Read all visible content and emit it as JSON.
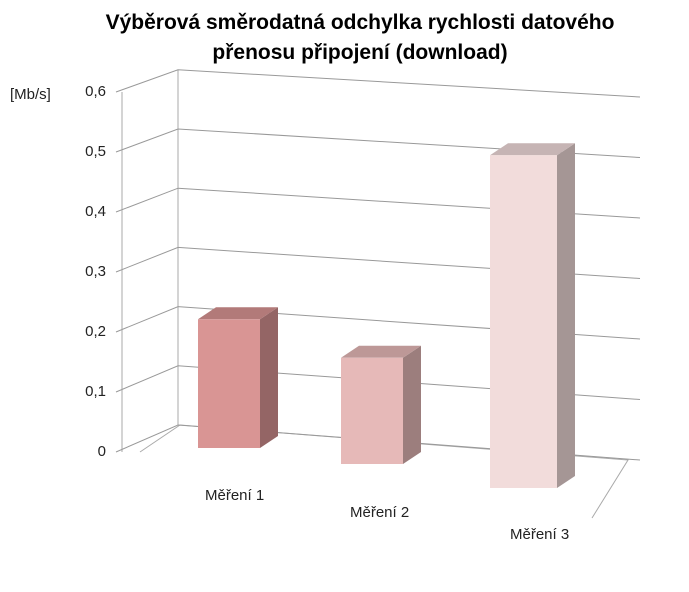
{
  "chart_data": {
    "type": "bar3d",
    "title": "Výběrová směrodatná odchylka rychlosti datového přenosu připojení (download)",
    "y_label": "[Mb/s]",
    "categories": [
      "Měření 1",
      "Měření 2",
      "Měření 3"
    ],
    "values": [
      0.22,
      0.18,
      0.52
    ],
    "colors": [
      "#d99594",
      "#e6b9b8",
      "#f2dcdb"
    ],
    "ylim": [
      0,
      0.6
    ],
    "yticks": [
      0,
      {
        "value": 0.1,
        "label": "0,1"
      },
      {
        "value": 0.2,
        "label": "0,2"
      },
      {
        "value": 0.3,
        "label": "0,3"
      },
      {
        "value": 0.4,
        "label": "0,4"
      },
      {
        "value": 0.5,
        "label": "0,5"
      },
      {
        "value": 0.6,
        "label": "0,6"
      }
    ],
    "grid": true
  }
}
